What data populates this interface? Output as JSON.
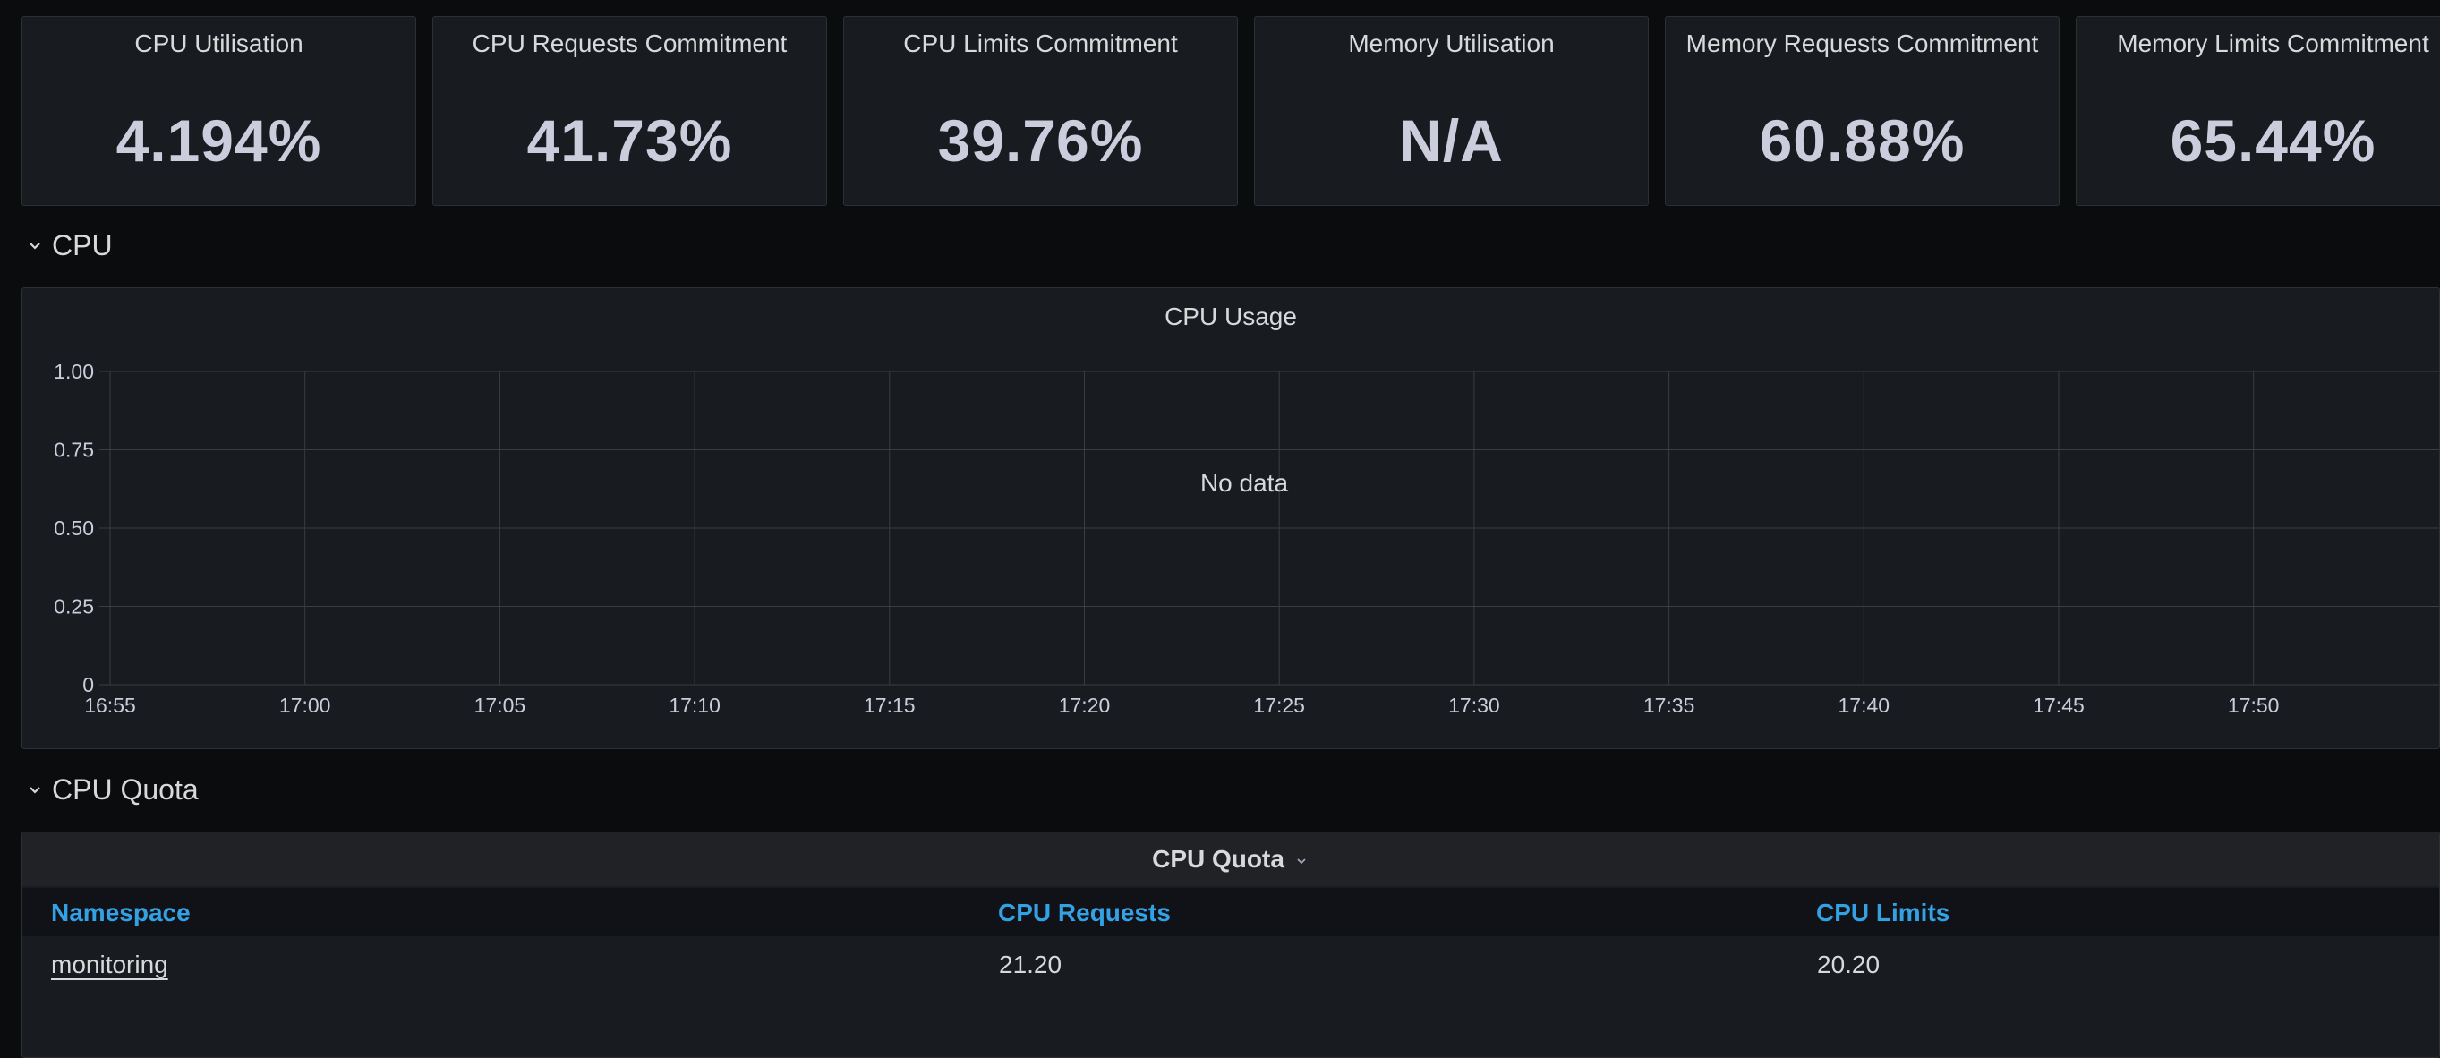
{
  "stats": [
    {
      "title": "CPU Utilisation",
      "value": "4.194%"
    },
    {
      "title": "CPU Requests Commitment",
      "value": "41.73%"
    },
    {
      "title": "CPU Limits Commitment",
      "value": "39.76%"
    },
    {
      "title": "Memory Utilisation",
      "value": "N/A"
    },
    {
      "title": "Memory Requests Commitment",
      "value": "60.88%"
    },
    {
      "title": "Memory Limits Commitment",
      "value": "65.44%"
    }
  ],
  "rows": {
    "cpu": {
      "title": "CPU"
    },
    "cpu_quota": {
      "title": "CPU Quota"
    }
  },
  "cpu_usage_panel": {
    "title": "CPU Usage",
    "no_data": "No data"
  },
  "chart_data": {
    "type": "line",
    "title": "CPU Usage",
    "x_ticks": [
      "16:55",
      "17:00",
      "17:05",
      "17:10",
      "17:15",
      "17:20",
      "17:25",
      "17:30",
      "17:35",
      "17:40",
      "17:45",
      "17:50"
    ],
    "y_ticks": [
      "1.00",
      "0.75",
      "0.50",
      "0.25",
      "0"
    ],
    "ylim": [
      0,
      1
    ],
    "grid": true,
    "series": []
  },
  "cpu_quota_panel": {
    "title": "CPU Quota",
    "columns": [
      "Namespace",
      "CPU Requests",
      "CPU Limits"
    ],
    "rows": [
      [
        "monitoring",
        "21.20",
        "20.20"
      ]
    ]
  },
  "colors": {
    "background": "#0b0c0e",
    "panel": "#181b1f",
    "header_link": "#33a2e5",
    "grid": "#3a3d42"
  }
}
